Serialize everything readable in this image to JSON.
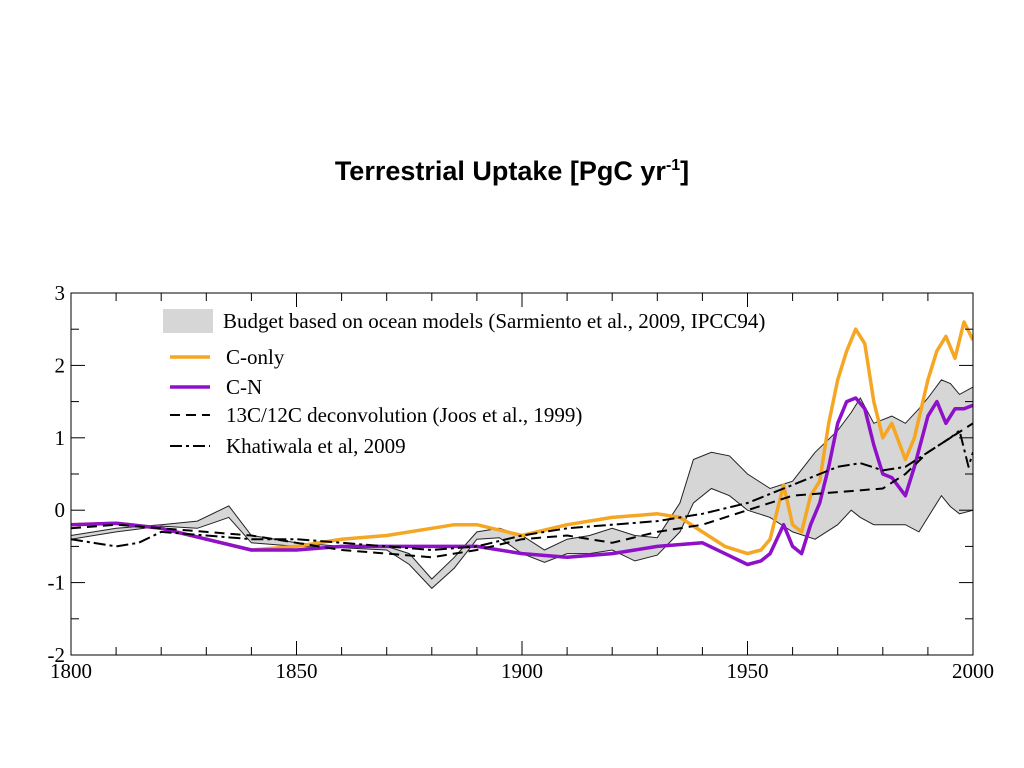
{
  "title": {
    "main": "Terrestrial Uptake [PgC yr",
    "sup": "-1",
    "close": "]"
  },
  "chart_data": {
    "type": "line",
    "xlim": [
      1800,
      2000
    ],
    "ylim": [
      -2,
      3
    ],
    "x_ticks": [
      1800,
      1850,
      1900,
      1950,
      2000
    ],
    "y_ticks": [
      3,
      2,
      1,
      0,
      -1,
      -2
    ],
    "x_tick_labels": [
      "1800",
      "1850",
      "1900",
      "1950",
      "2000"
    ],
    "y_tick_labels": [
      "3",
      "2",
      "1",
      "0",
      "-1",
      "-2"
    ],
    "grid": false,
    "legend_placement": "top-left",
    "legend": [
      {
        "key": "budget",
        "label": "Budget based on ocean models (Sarmiento et al., 2009, IPCC94)"
      },
      {
        "key": "conly",
        "label": "C-only"
      },
      {
        "key": "cn",
        "label": "C-N"
      },
      {
        "key": "joos",
        "label": "13C/12C deconvolution (Joos et al., 1999)"
      },
      {
        "key": "khat",
        "label": "Khatiwala et al, 2009"
      }
    ],
    "series": [
      {
        "key": "budget",
        "kind": "band",
        "color": "#d6d6d6",
        "stroke": "#222222",
        "x": [
          1800,
          1810,
          1820,
          1828,
          1835,
          1840,
          1850,
          1860,
          1870,
          1875,
          1880,
          1885,
          1890,
          1895,
          1900,
          1905,
          1910,
          1915,
          1920,
          1925,
          1930,
          1935,
          1938,
          1942,
          1946,
          1950,
          1955,
          1960,
          1965,
          1970,
          1973,
          1975,
          1978,
          1982,
          1985,
          1988,
          1990,
          1993,
          1995,
          1997,
          2000
        ],
        "lower": [
          -0.4,
          -0.3,
          -0.22,
          -0.25,
          -0.1,
          -0.45,
          -0.5,
          -0.52,
          -0.55,
          -0.75,
          -1.08,
          -0.8,
          -0.4,
          -0.38,
          -0.6,
          -0.72,
          -0.6,
          -0.6,
          -0.55,
          -0.7,
          -0.62,
          -0.3,
          0.1,
          0.3,
          0.2,
          0.0,
          -0.1,
          -0.3,
          -0.4,
          -0.2,
          0.0,
          -0.1,
          -0.2,
          -0.2,
          -0.2,
          -0.3,
          -0.1,
          0.2,
          0.05,
          -0.05,
          0.0
        ],
        "upper": [
          -0.35,
          -0.25,
          -0.2,
          -0.15,
          0.06,
          -0.35,
          -0.45,
          -0.5,
          -0.5,
          -0.6,
          -0.95,
          -0.65,
          -0.3,
          -0.25,
          -0.35,
          -0.55,
          -0.4,
          -0.35,
          -0.25,
          -0.35,
          -0.38,
          0.1,
          0.7,
          0.8,
          0.75,
          0.5,
          0.3,
          0.4,
          0.8,
          1.1,
          1.35,
          1.55,
          1.2,
          1.3,
          1.2,
          1.4,
          1.55,
          1.8,
          1.75,
          1.6,
          1.7
        ]
      },
      {
        "key": "conly",
        "kind": "line",
        "color": "#f5a623",
        "width": 3.5,
        "dash": "",
        "x": [
          1800,
          1810,
          1820,
          1830,
          1840,
          1850,
          1860,
          1870,
          1880,
          1885,
          1890,
          1900,
          1910,
          1920,
          1930,
          1935,
          1940,
          1945,
          1950,
          1953,
          1955,
          1958,
          1960,
          1962,
          1964,
          1966,
          1968,
          1970,
          1972,
          1974,
          1976,
          1978,
          1980,
          1982,
          1985,
          1987,
          1990,
          1992,
          1994,
          1996,
          1998,
          2000
        ],
        "y": [
          -0.2,
          -0.18,
          -0.25,
          -0.4,
          -0.55,
          -0.5,
          -0.4,
          -0.35,
          -0.25,
          -0.2,
          -0.2,
          -0.35,
          -0.2,
          -0.1,
          -0.05,
          -0.1,
          -0.3,
          -0.5,
          -0.6,
          -0.55,
          -0.4,
          0.35,
          -0.2,
          -0.3,
          0.2,
          0.4,
          1.2,
          1.8,
          2.2,
          2.5,
          2.3,
          1.5,
          1.0,
          1.2,
          0.7,
          1.0,
          1.8,
          2.2,
          2.4,
          2.1,
          2.6,
          2.35
        ]
      },
      {
        "key": "cn",
        "kind": "line",
        "color": "#8e10c9",
        "width": 3.5,
        "dash": "",
        "x": [
          1800,
          1810,
          1820,
          1830,
          1840,
          1850,
          1860,
          1870,
          1880,
          1890,
          1900,
          1910,
          1920,
          1930,
          1940,
          1945,
          1950,
          1953,
          1955,
          1958,
          1960,
          1962,
          1964,
          1966,
          1968,
          1970,
          1972,
          1974,
          1976,
          1978,
          1980,
          1982,
          1985,
          1987,
          1990,
          1992,
          1994,
          1996,
          1998,
          2000
        ],
        "y": [
          -0.2,
          -0.18,
          -0.25,
          -0.4,
          -0.55,
          -0.55,
          -0.5,
          -0.5,
          -0.5,
          -0.5,
          -0.6,
          -0.65,
          -0.6,
          -0.5,
          -0.45,
          -0.6,
          -0.75,
          -0.7,
          -0.6,
          -0.2,
          -0.5,
          -0.6,
          -0.2,
          0.1,
          0.6,
          1.2,
          1.5,
          1.55,
          1.4,
          0.9,
          0.5,
          0.45,
          0.2,
          0.6,
          1.3,
          1.5,
          1.2,
          1.4,
          1.4,
          1.45
        ]
      },
      {
        "key": "joos",
        "kind": "line",
        "color": "#000000",
        "width": 2,
        "dash": "10,6",
        "x": [
          1800,
          1810,
          1820,
          1830,
          1840,
          1850,
          1860,
          1870,
          1880,
          1890,
          1900,
          1910,
          1920,
          1930,
          1940,
          1950,
          1960,
          1970,
          1980,
          1985,
          1990,
          1995,
          2000
        ],
        "y": [
          -0.25,
          -0.2,
          -0.25,
          -0.3,
          -0.35,
          -0.45,
          -0.55,
          -0.6,
          -0.65,
          -0.55,
          -0.4,
          -0.35,
          -0.45,
          -0.3,
          -0.2,
          0.0,
          0.2,
          0.25,
          0.3,
          0.5,
          0.8,
          1.0,
          1.2
        ]
      },
      {
        "key": "khat",
        "kind": "line",
        "color": "#000000",
        "width": 2,
        "dash": "12,4,3,4",
        "x": [
          1800,
          1805,
          1810,
          1815,
          1820,
          1830,
          1840,
          1850,
          1860,
          1870,
          1880,
          1890,
          1900,
          1910,
          1920,
          1930,
          1940,
          1950,
          1960,
          1970,
          1975,
          1980,
          1985,
          1990,
          1995,
          1997,
          1999,
          2000
        ],
        "y": [
          -0.4,
          -0.45,
          -0.5,
          -0.45,
          -0.3,
          -0.35,
          -0.4,
          -0.4,
          -0.45,
          -0.5,
          -0.55,
          -0.5,
          -0.35,
          -0.25,
          -0.2,
          -0.15,
          -0.05,
          0.1,
          0.35,
          0.6,
          0.65,
          0.55,
          0.6,
          0.8,
          1.0,
          1.1,
          0.6,
          0.8
        ]
      }
    ]
  }
}
